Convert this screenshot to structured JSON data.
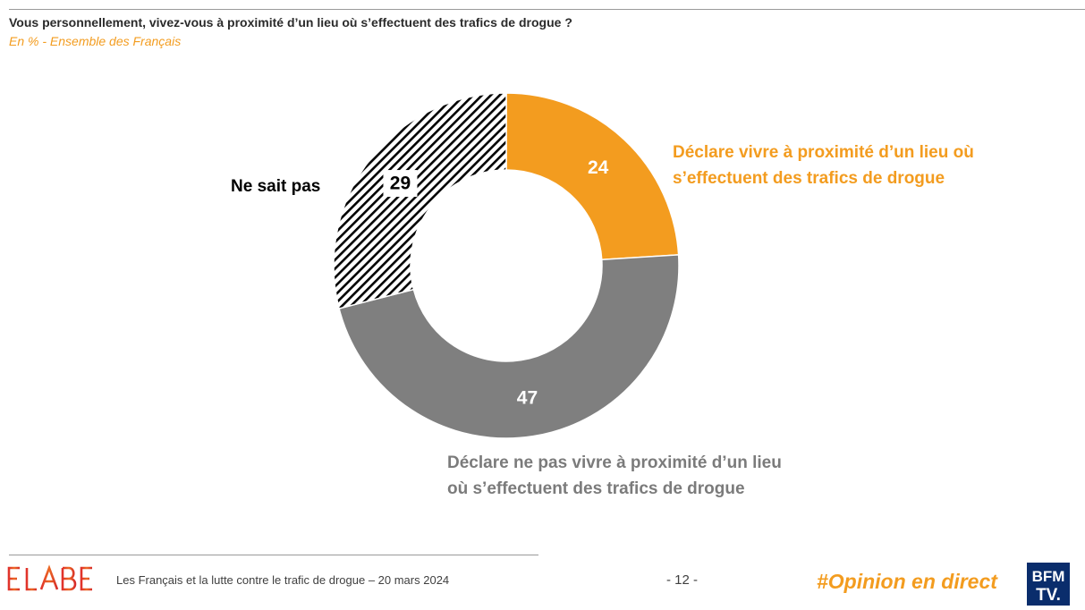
{
  "header": {
    "question": "Vous personnellement, vivez-vous à proximité d’un lieu où s’effectuent des trafics de drogue ?",
    "subtitle": "En % - Ensemble des Français"
  },
  "chart_data": {
    "type": "pie",
    "variant": "donut",
    "title": "Vous personnellement, vivez-vous à proximité d’un lieu où s’effectuent des trafics de drogue ?",
    "unit": "%",
    "slices": [
      {
        "name": "Déclare vivre à proximité d’un lieu où s’effectuent des trafics de drogue",
        "label_lines": [
          "Déclare vivre à proximité d’un lieu où",
          "s’effectuent des trafics de drogue"
        ],
        "value": 24,
        "value_text": "24",
        "color": "#f39c1f",
        "label_color": "#f39c1f",
        "value_color": "#ffffff",
        "fill": "solid"
      },
      {
        "name": "Déclare ne pas vivre à proximité d’un lieu où s’effectuent des trafics de drogue",
        "label_lines": [
          "Déclare ne pas vivre à proximité d’un lieu",
          "où s’effectuent des trafics de drogue"
        ],
        "value": 47,
        "value_text": "47",
        "color": "#7f7f7f",
        "label_color": "#7b7b7b",
        "value_color": "#ffffff",
        "fill": "solid"
      },
      {
        "name": "Ne sait pas",
        "label_lines": [
          "Ne sait pas"
        ],
        "value": 29,
        "value_text": "29",
        "color": "#000000",
        "label_color": "#000000",
        "value_color": "#000000",
        "fill": "hatched"
      }
    ]
  },
  "footer": {
    "logo_text": "ELABE",
    "study_text": "Les Français et la lutte contre le trafic de drogue – 20 mars 2024",
    "page_number": "- 12 -",
    "hashtag": "#Opinion en direct",
    "broadcaster_logo_line1": "BFM",
    "broadcaster_logo_line2": "TV."
  },
  "colors": {
    "accent": "#f39c1f",
    "neutral": "#7f7f7f",
    "broadcaster_blue": "#0a2d6c"
  }
}
